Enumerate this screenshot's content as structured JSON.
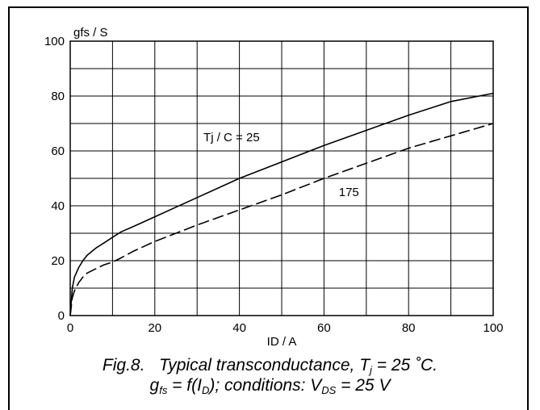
{
  "chart_data": {
    "type": "line",
    "xlabel": "ID / A",
    "ylabel": "gfs / S",
    "xlim": [
      0,
      100
    ],
    "ylim": [
      0,
      100
    ],
    "xticks": [
      0,
      20,
      40,
      60,
      80,
      100
    ],
    "yticks": [
      0,
      20,
      40,
      60,
      80,
      100
    ],
    "grid": true,
    "x_grid_step": 10,
    "y_grid_step": 10,
    "series": [
      {
        "name": "Tj / C = 25",
        "style": "solid",
        "x": [
          0,
          0.5,
          1,
          2,
          3,
          4,
          6,
          8,
          10,
          12,
          15,
          20,
          25,
          30,
          40,
          50,
          60,
          70,
          80,
          90,
          100
        ],
        "y": [
          0,
          10,
          14,
          17.5,
          20,
          22,
          24.5,
          26.5,
          28.5,
          30.5,
          32.5,
          36,
          39.5,
          43,
          50,
          56,
          62,
          67.5,
          73,
          78,
          81
        ]
      },
      {
        "name": "175",
        "style": "dashed",
        "x": [
          0,
          0.5,
          1,
          2,
          3,
          4,
          6,
          8,
          10,
          12,
          15,
          20,
          25,
          30,
          40,
          50,
          60,
          70,
          80,
          90,
          100
        ],
        "y": [
          0,
          6.5,
          9,
          12,
          14,
          15.5,
          17,
          18.5,
          19.5,
          21,
          23.5,
          27,
          30,
          33,
          38.5,
          44,
          50,
          55.5,
          61,
          65.5,
          70
        ]
      }
    ],
    "annotations": [
      {
        "text": "Tj / C = 25",
        "x": 31.5,
        "y": 63.5
      },
      {
        "text": "175",
        "x": 63.5,
        "y": 43.5
      }
    ]
  },
  "caption": {
    "fig_label": "Fig.8.",
    "line1_prefix": "Typical transconductance, T",
    "line1_sub": "j",
    "line1_suffix": " = 25 ˚C.",
    "line2_g": "g",
    "line2_g_sub": "fs",
    "line2_mid": " = f(I",
    "line2_i_sub": "D",
    "line2_cond": "); conditions: V",
    "line2_v_sub": "DS",
    "line2_end": " = 25 V"
  }
}
